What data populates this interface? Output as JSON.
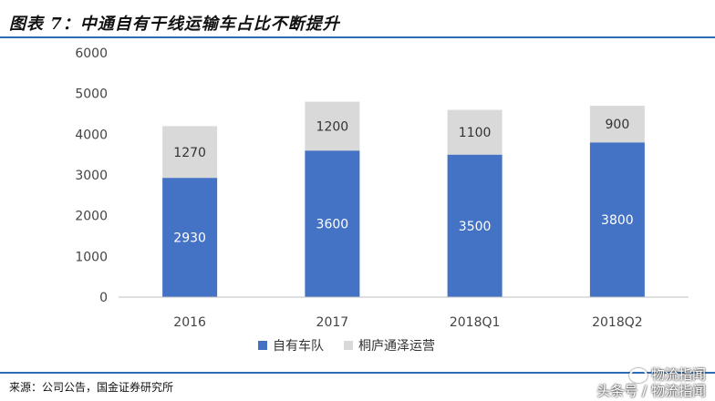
{
  "header": {
    "title": "图表 7：中通自有干线运输车占比不断提升"
  },
  "footer": {
    "source": "来源：公司公告，国金证券研究所"
  },
  "watermark": {
    "line1": "物流指闻",
    "line2": "头条号 / 物流指闻"
  },
  "chart_data": {
    "type": "bar",
    "stacked": true,
    "title": "",
    "xlabel": "",
    "ylabel": "",
    "categories": [
      "2016",
      "2017",
      "2018Q1",
      "2018Q2"
    ],
    "ylim": [
      0,
      6000
    ],
    "yticks": [
      0,
      1000,
      2000,
      3000,
      4000,
      5000,
      6000
    ],
    "legend_position": "bottom",
    "grid": false,
    "series": [
      {
        "name": "自有车队",
        "values": [
          2930,
          3600,
          3500,
          3800
        ],
        "color": "#4472c4",
        "label_color": "#ffffff"
      },
      {
        "name": "桐庐通泽运营",
        "values": [
          1270,
          1200,
          1100,
          900
        ],
        "color": "#d9d9d9",
        "label_color": "#333333"
      }
    ]
  }
}
